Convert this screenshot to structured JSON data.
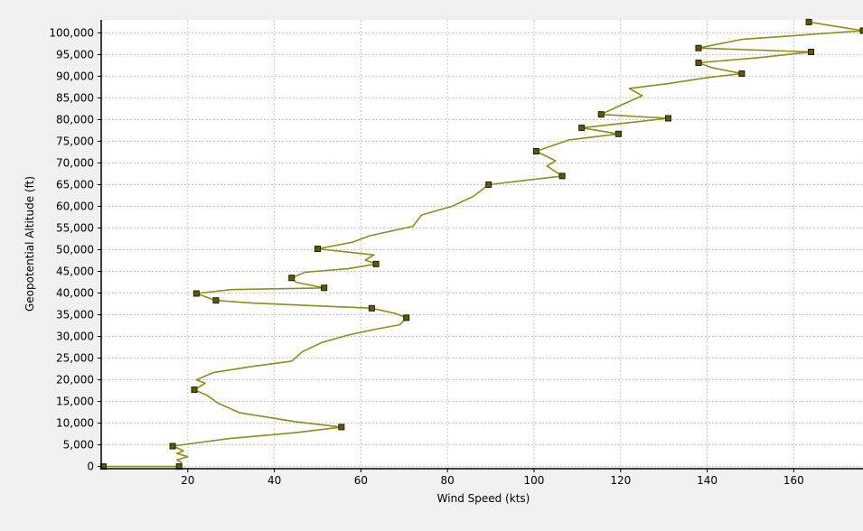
{
  "chart_data": {
    "type": "line",
    "title": "",
    "xlabel": "Wind Speed (kts)",
    "ylabel": "Geopotential Altitude (ft)",
    "xlim": [
      0,
      176
    ],
    "ylim": [
      -500,
      103000
    ],
    "x_ticks": [
      20,
      40,
      60,
      80,
      100,
      120,
      140,
      160
    ],
    "x_tick_labels": [
      "20",
      "40",
      "60",
      "80",
      "100",
      "120",
      "140",
      "160"
    ],
    "y_ticks": [
      0,
      5000,
      10000,
      15000,
      20000,
      25000,
      30000,
      35000,
      40000,
      45000,
      50000,
      55000,
      60000,
      65000,
      70000,
      75000,
      80000,
      85000,
      90000,
      95000,
      100000
    ],
    "y_tick_labels": [
      "0",
      "5,000",
      "10,000",
      "15,000",
      "20,000",
      "25,000",
      "30,000",
      "35,000",
      "40,000",
      "45,000",
      "50,000",
      "55,000",
      "60,000",
      "65,000",
      "70,000",
      "75,000",
      "80,000",
      "85,000",
      "90,000",
      "95,000",
      "100,000"
    ],
    "grid": true,
    "colors": {
      "line": "#8c8c1e",
      "marker_fill": "#5a5a0a",
      "marker_edge": "#1e1e00",
      "plot_bg": "#ffffff",
      "grid": "#c8c8c8"
    },
    "series": [
      {
        "line": [
          [
            0.5,
            0
          ],
          [
            18,
            0
          ],
          [
            18.5,
            1000
          ],
          [
            17.5,
            1500
          ],
          [
            20,
            2300
          ],
          [
            17.5,
            3000
          ],
          [
            19,
            3600
          ],
          [
            18,
            4100
          ],
          [
            16.5,
            4700
          ],
          [
            30,
            6500
          ],
          [
            45,
            7800
          ],
          [
            55.5,
            9100
          ],
          [
            45,
            10300
          ],
          [
            32,
            12400
          ],
          [
            27,
            14600
          ],
          [
            24.5,
            16400
          ],
          [
            21.5,
            17700
          ],
          [
            24,
            19200
          ],
          [
            22,
            20000
          ],
          [
            26,
            21700
          ],
          [
            35,
            23100
          ],
          [
            44,
            24300
          ],
          [
            46.5,
            26500
          ],
          [
            51,
            28600
          ],
          [
            57,
            30300
          ],
          [
            63,
            31600
          ],
          [
            69,
            32700
          ],
          [
            70.5,
            34300
          ],
          [
            68,
            35300
          ],
          [
            62.5,
            36500
          ],
          [
            35,
            37700
          ],
          [
            26.5,
            38300
          ],
          [
            22,
            39900
          ],
          [
            30,
            40800
          ],
          [
            51.5,
            41200
          ],
          [
            45,
            42500
          ],
          [
            44,
            43500
          ],
          [
            47,
            44800
          ],
          [
            57,
            45600
          ],
          [
            63.5,
            46700
          ],
          [
            61,
            47600
          ],
          [
            63,
            48800
          ],
          [
            50,
            50200
          ],
          [
            58,
            51700
          ],
          [
            62,
            53200
          ],
          [
            72,
            55400
          ],
          [
            74,
            58000
          ],
          [
            81,
            60000
          ],
          [
            86,
            62300
          ],
          [
            89.5,
            65000
          ],
          [
            106.5,
            67000
          ],
          [
            103,
            69300
          ],
          [
            105,
            70500
          ],
          [
            100.5,
            72700
          ],
          [
            108,
            75300
          ],
          [
            119.5,
            76700
          ],
          [
            111,
            78100
          ],
          [
            121,
            79200
          ],
          [
            131,
            80300
          ],
          [
            115.5,
            81200
          ],
          [
            120,
            83300
          ],
          [
            125,
            85500
          ],
          [
            122,
            87200
          ],
          [
            131,
            88300
          ],
          [
            140,
            89700
          ],
          [
            148,
            90600
          ],
          [
            141,
            92000
          ],
          [
            138,
            93100
          ],
          [
            152,
            94300
          ],
          [
            164,
            95600
          ],
          [
            138,
            96500
          ],
          [
            148,
            98500
          ],
          [
            176,
            100500
          ],
          [
            163.5,
            102500
          ]
        ],
        "markers": [
          [
            0.5,
            0
          ],
          [
            18,
            0
          ],
          [
            16.5,
            4700
          ],
          [
            55.5,
            9100
          ],
          [
            21.5,
            17700
          ],
          [
            70.5,
            34300
          ],
          [
            62.5,
            36500
          ],
          [
            26.5,
            38300
          ],
          [
            22,
            39900
          ],
          [
            51.5,
            41200
          ],
          [
            44,
            43500
          ],
          [
            63.5,
            46700
          ],
          [
            50,
            50200
          ],
          [
            89.5,
            65000
          ],
          [
            106.5,
            67000
          ],
          [
            100.5,
            72700
          ],
          [
            119.5,
            76700
          ],
          [
            111,
            78100
          ],
          [
            131,
            80300
          ],
          [
            115.5,
            81200
          ],
          [
            148,
            90600
          ],
          [
            138,
            93100
          ],
          [
            164,
            95600
          ],
          [
            138,
            96500
          ],
          [
            176,
            100500
          ],
          [
            163.5,
            102500
          ]
        ]
      }
    ]
  }
}
